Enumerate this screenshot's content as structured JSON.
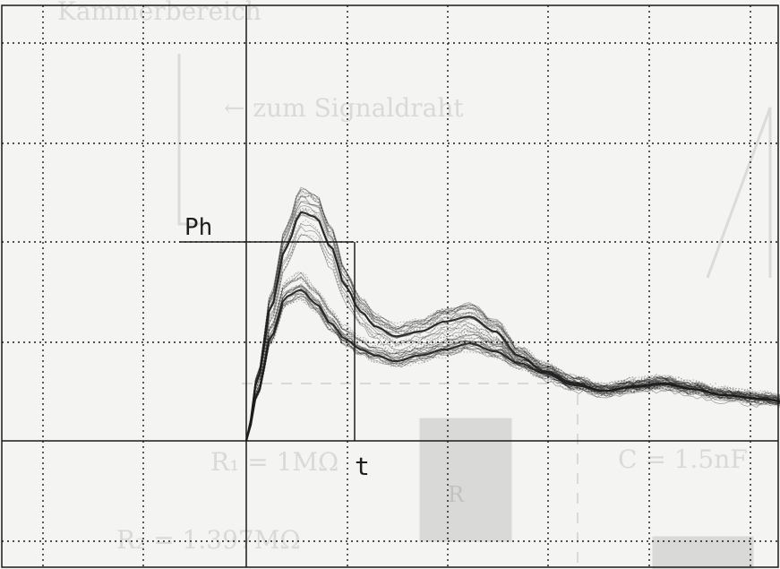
{
  "chart_data": {
    "type": "line",
    "title": "",
    "xlabel": "",
    "ylabel": "",
    "grid": true,
    "annotations": {
      "peak_label": "Ph",
      "time_label": "t"
    },
    "series": [
      {
        "x": [
          0,
          0.12,
          0.25,
          0.4,
          0.55,
          0.7,
          0.85,
          1.0,
          1.15,
          1.3,
          1.5,
          1.75,
          2.0,
          2.25,
          2.5,
          2.75,
          3.0,
          3.3,
          3.6,
          3.9,
          4.2,
          4.5,
          4.8,
          5.2,
          5.5
        ],
        "y": [
          0,
          0.65,
          1.35,
          1.95,
          2.3,
          2.25,
          1.95,
          1.55,
          1.3,
          1.15,
          1.05,
          1.1,
          1.2,
          1.25,
          1.1,
          0.85,
          0.7,
          0.58,
          0.5,
          0.55,
          0.58,
          0.52,
          0.46,
          0.42,
          0.38
        ]
      },
      {
        "x": [
          0,
          0.12,
          0.25,
          0.4,
          0.55,
          0.7,
          0.85,
          1.0,
          1.15,
          1.3,
          1.5,
          1.75,
          2.0,
          2.25,
          2.5,
          2.75,
          3.0,
          3.3,
          3.6,
          3.9,
          4.2,
          4.5,
          4.8,
          5.2,
          5.5
        ],
        "y": [
          0,
          0.5,
          1.05,
          1.45,
          1.52,
          1.38,
          1.18,
          1.02,
          0.92,
          0.86,
          0.8,
          0.86,
          0.92,
          0.98,
          0.9,
          0.78,
          0.68,
          0.56,
          0.5,
          0.54,
          0.57,
          0.52,
          0.46,
          0.42,
          0.38
        ]
      }
    ]
  },
  "background_print": {
    "line1": "Kammerbereich",
    "line2": "←  zum Signaldraht",
    "line3": "C = 1.5nF",
    "line4": "R₁ = 1MΩ",
    "line5": "R₂ = 1.397MΩ",
    "line6": "R"
  },
  "style": {
    "trace_color": "#1c1c1c",
    "grid_color": "#1a1a1a",
    "paper_color": "#f4f4f2"
  }
}
